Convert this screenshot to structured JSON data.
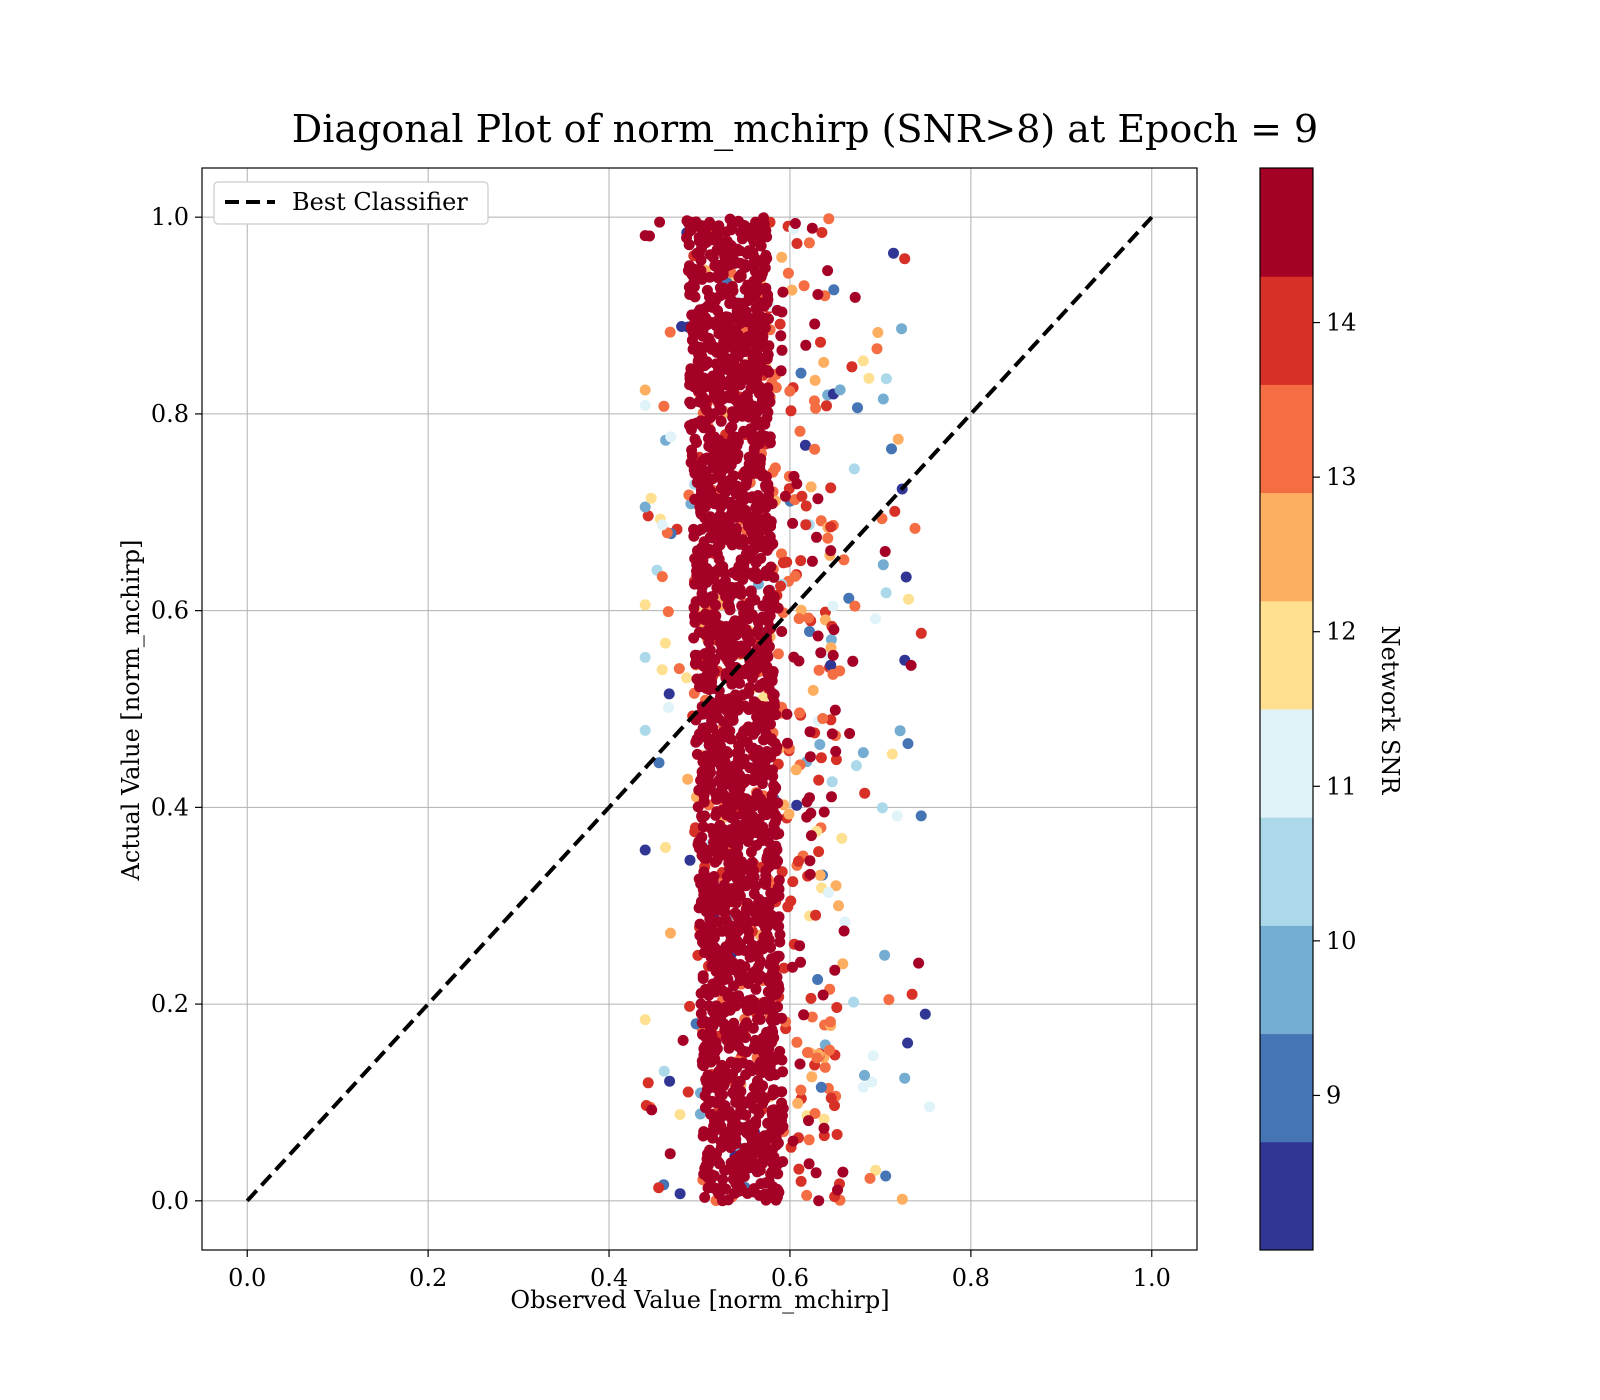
{
  "chart_data": {
    "type": "scatter",
    "title": "Diagonal Plot of norm_mchirp (SNR>8) at Epoch = 9",
    "xlabel": "Observed Value [norm_mchirp]",
    "ylabel": "Actual Value [norm_mchirp]",
    "xlim": [
      -0.05,
      1.05
    ],
    "ylim": [
      -0.05,
      1.05
    ],
    "xticks": [
      0.0,
      0.2,
      0.4,
      0.6,
      0.8,
      1.0
    ],
    "yticks": [
      0.0,
      0.2,
      0.4,
      0.6,
      0.8,
      1.0
    ],
    "xtick_labels": [
      "0.0",
      "0.2",
      "0.4",
      "0.6",
      "0.8",
      "1.0"
    ],
    "ytick_labels": [
      "0.0",
      "0.2",
      "0.4",
      "0.6",
      "0.8",
      "1.0"
    ],
    "grid": true,
    "legend": {
      "position": "top-left",
      "entries": [
        {
          "label": "Best Classifier",
          "style": "dashed",
          "color": "#000000"
        }
      ]
    },
    "reference_line": {
      "name": "Best Classifier",
      "x": [
        0.0,
        1.0
      ],
      "y": [
        0.0,
        1.0
      ]
    },
    "point_cloud": {
      "description_values": "samples cluster at observed 0.45-0.78, actual 0.0-1.0",
      "observed_center_at_actual_0": 0.55,
      "observed_center_at_actual_1": 0.53,
      "core_half_width": 0.045,
      "outer_extent": [
        0.44,
        0.78
      ],
      "actual_range": [
        0.0,
        1.0
      ]
    },
    "colorbar": {
      "label": "Network SNR",
      "range": [
        8.0,
        15.0
      ],
      "ticks": [
        9,
        10,
        11,
        12,
        13,
        14
      ],
      "tick_labels": [
        "9",
        "10",
        "11",
        "12",
        "13",
        "14"
      ],
      "colors": [
        "#313695",
        "#4575b4",
        "#74add1",
        "#abd9e9",
        "#e0f3f8",
        "#fee090",
        "#fdae61",
        "#f46d43",
        "#d73027",
        "#a50026"
      ]
    }
  }
}
